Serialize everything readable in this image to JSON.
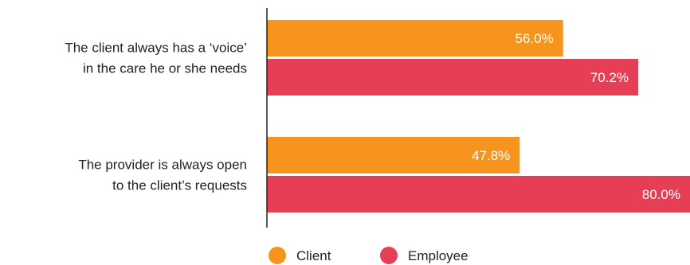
{
  "chart_data": {
    "type": "bar",
    "orientation": "horizontal",
    "categories": [
      [
        "The client always has a ‘voice’",
        "in the care he or she needs"
      ],
      [
        "The provider is always open",
        "to the client’s requests"
      ]
    ],
    "series": [
      {
        "name": "Client",
        "color": "#F7941D",
        "values": [
          56.0,
          47.8
        ],
        "labels": [
          "56.0%",
          "47.8%"
        ]
      },
      {
        "name": "Employee",
        "color": "#E63E55",
        "values": [
          70.2,
          80.0
        ],
        "labels": [
          "70.2%",
          "80.0%"
        ]
      }
    ],
    "xlim": [
      0,
      80
    ],
    "title": "",
    "xlabel": "",
    "ylabel": "",
    "grid": false,
    "legend": "bottom"
  }
}
